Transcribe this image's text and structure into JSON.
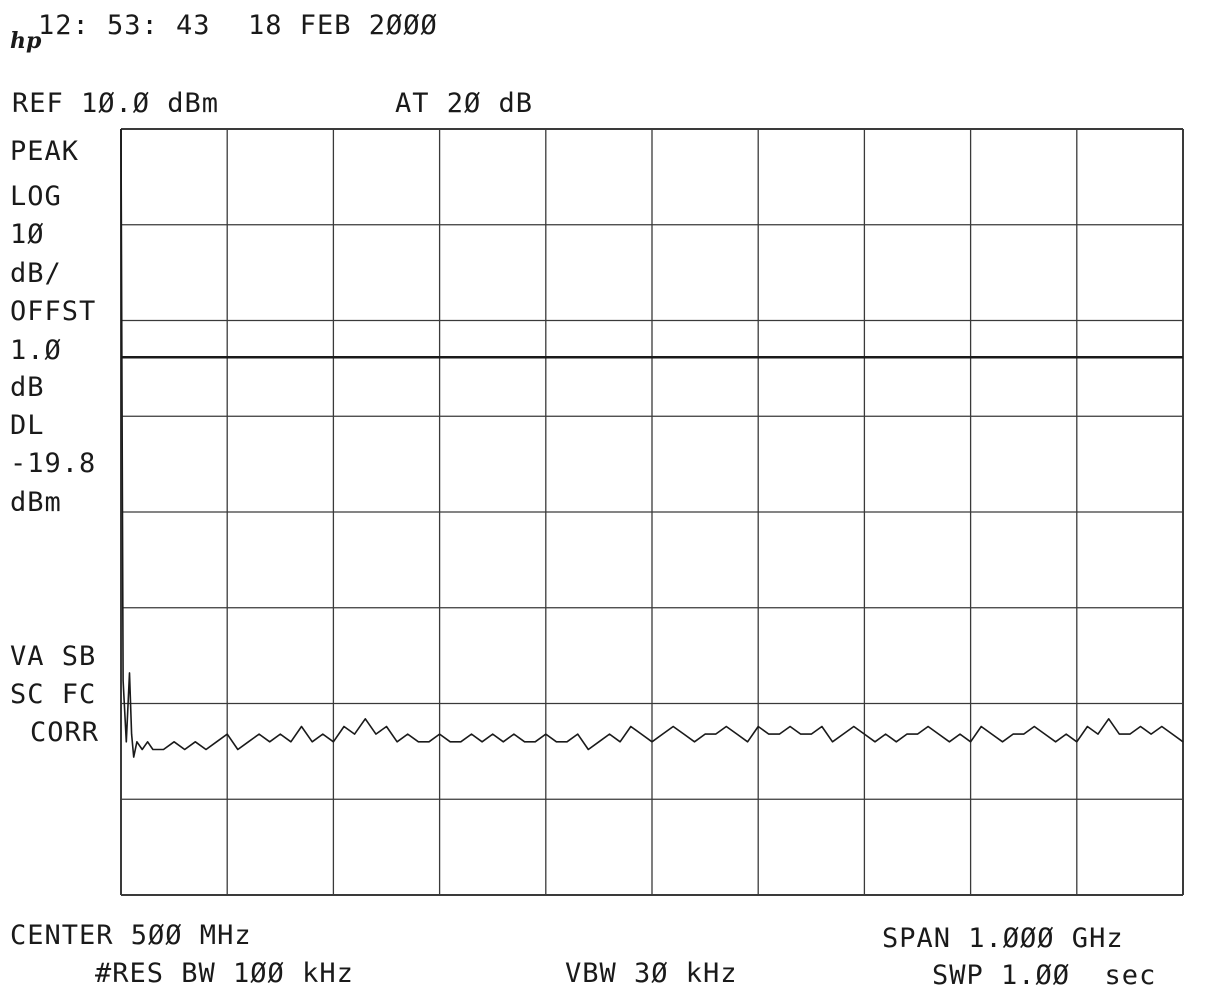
{
  "header": {
    "time": "12: 53: 43",
    "date": "18 FEB 2ØØØ",
    "logo": "hp",
    "ref_level": "REF 1Ø.Ø dBm",
    "attenuation": "AT 2Ø dB"
  },
  "side_labels": {
    "detector": "PEAK",
    "scale_type": "LOG",
    "scale_value": "1Ø",
    "scale_unit": "dB/",
    "offset_label": "OFFST",
    "offset_value": "1.Ø",
    "offset_unit": "dB",
    "display_line_label": "DL",
    "display_line_value": "-19.8",
    "display_line_unit": "dBm",
    "flags_1": "VA SB",
    "flags_2": "SC FC",
    "flags_3": "CORR"
  },
  "footer": {
    "center": "CENTER 5ØØ MHz",
    "span": "SPAN 1.ØØØ GHz",
    "res_bw": "#RES BW 1ØØ kHz",
    "vbw": "VBW 3Ø kHz",
    "sweep": "SWP 1.ØØ  sec"
  },
  "colors": {
    "trace": "#1a1a1a",
    "grid": "#3a3a3a",
    "background": "#ffffff"
  },
  "chart_data": {
    "type": "line",
    "title": "",
    "xlabel": "",
    "ylabel": "",
    "x_unit": "MHz",
    "y_unit": "dBm",
    "xlim": [
      0,
      1000
    ],
    "ylim": [
      -90,
      10
    ],
    "grid": true,
    "grid_divisions": {
      "x": 10,
      "y": 8
    },
    "display_line_dbm": -19.8,
    "series": [
      {
        "values_x": [
          0,
          2,
          5,
          8,
          10,
          12,
          15,
          20,
          25,
          30,
          40,
          50,
          60,
          70,
          80,
          90,
          100,
          110,
          120,
          130,
          140,
          150,
          160,
          170,
          180,
          190,
          200,
          210,
          220,
          230,
          240,
          250,
          260,
          270,
          280,
          290,
          300,
          310,
          320,
          330,
          340,
          350,
          360,
          370,
          380,
          390,
          400,
          410,
          420,
          430,
          440,
          450,
          460,
          470,
          480,
          490,
          500,
          510,
          520,
          530,
          540,
          550,
          560,
          570,
          580,
          590,
          600,
          610,
          620,
          630,
          640,
          650,
          660,
          670,
          680,
          690,
          700,
          710,
          720,
          730,
          740,
          750,
          760,
          770,
          780,
          790,
          800,
          810,
          820,
          830,
          840,
          850,
          860,
          870,
          880,
          890,
          900,
          910,
          920,
          930,
          940,
          950,
          960,
          970,
          980,
          990,
          1000
        ],
        "values_y": [
          10,
          -62,
          -70,
          -61,
          -69,
          -72,
          -70,
          -71,
          -70,
          -71,
          -71,
          -70,
          -71,
          -70,
          -71,
          -70,
          -69,
          -71,
          -70,
          -69,
          -70,
          -69,
          -70,
          -68,
          -70,
          -69,
          -70,
          -68,
          -69,
          -67,
          -69,
          -68,
          -70,
          -69,
          -70,
          -70,
          -69,
          -70,
          -70,
          -69,
          -70,
          -69,
          -70,
          -69,
          -70,
          -70,
          -69,
          -70,
          -70,
          -69,
          -71,
          -70,
          -69,
          -70,
          -68,
          -69,
          -70,
          -69,
          -68,
          -69,
          -70,
          -69,
          -69,
          -68,
          -69,
          -70,
          -68,
          -69,
          -69,
          -68,
          -69,
          -69,
          -68,
          -70,
          -69,
          -68,
          -69,
          -70,
          -69,
          -70,
          -69,
          -69,
          -68,
          -69,
          -70,
          -69,
          -70,
          -68,
          -69,
          -70,
          -69,
          -69,
          -68,
          -69,
          -70,
          -69,
          -70,
          -68,
          -69,
          -67,
          -69,
          -69,
          -68,
          -69,
          -68,
          -69,
          -70
        ]
      }
    ]
  }
}
